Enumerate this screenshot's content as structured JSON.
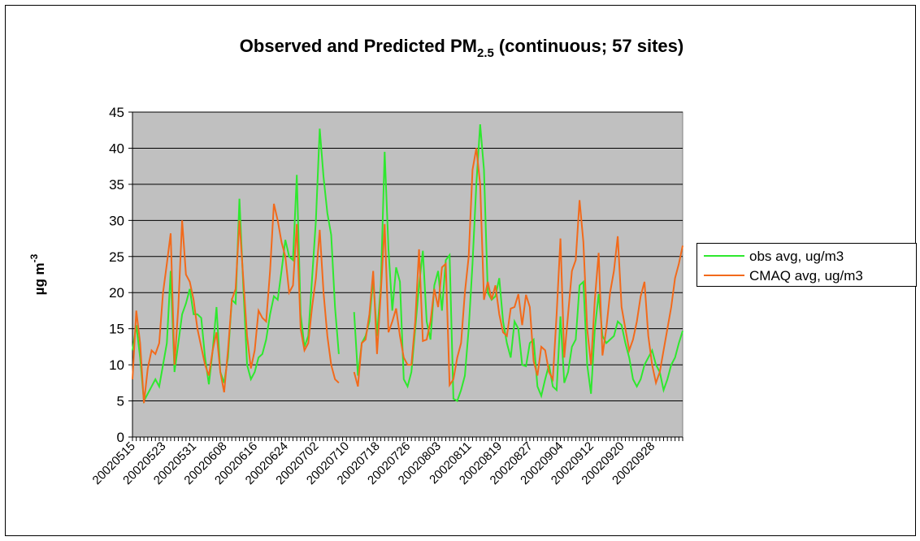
{
  "chart_data": {
    "type": "line",
    "title": [
      "Observed and Predicted PM",
      "2.5",
      "(continuous; 57 sites)"
    ],
    "ylabel": [
      "µg m",
      "-3"
    ],
    "categories": [
      "20020515",
      null,
      null,
      null,
      null,
      null,
      null,
      null,
      "20020523",
      null,
      null,
      null,
      null,
      null,
      null,
      null,
      "20020531",
      null,
      null,
      null,
      null,
      null,
      null,
      null,
      "20020608",
      null,
      null,
      null,
      null,
      null,
      null,
      null,
      "20020616",
      null,
      null,
      null,
      null,
      null,
      null,
      null,
      "20020624",
      null,
      null,
      null,
      null,
      null,
      null,
      null,
      "20020702",
      null,
      null,
      null,
      null,
      null,
      null,
      null,
      "20020710",
      null,
      null,
      null,
      null,
      null,
      null,
      null,
      "20020718",
      null,
      null,
      null,
      null,
      null,
      null,
      null,
      "20020726",
      null,
      null,
      null,
      null,
      null,
      null,
      null,
      "20020803",
      null,
      null,
      null,
      null,
      null,
      null,
      null,
      "20020811",
      null,
      null,
      null,
      null,
      null,
      null,
      null,
      "20020819",
      null,
      null,
      null,
      null,
      null,
      null,
      null,
      "20020827",
      null,
      null,
      null,
      null,
      null,
      null,
      null,
      "20020904",
      null,
      null,
      null,
      null,
      null,
      null,
      null,
      "20020912",
      null,
      null,
      null,
      null,
      null,
      null,
      null,
      "20020920",
      null,
      null,
      null,
      null,
      null,
      null,
      null,
      "20020928",
      null,
      null,
      null,
      null,
      null,
      null,
      null,
      null
    ],
    "series": [
      {
        "name": "obs avg, ug/m3",
        "color": "#2ee82e",
        "values": [
          12,
          15.5,
          11,
          5,
          6,
          7,
          8,
          7,
          10,
          13,
          23,
          9,
          13,
          17,
          18.5,
          20.5,
          17,
          17,
          16.5,
          11,
          7.3,
          12,
          18,
          9,
          7.5,
          11,
          19,
          18.5,
          33,
          21,
          10,
          8,
          9,
          11,
          11.5,
          13.5,
          17,
          19.5,
          19,
          23,
          27.3,
          25,
          24.5,
          36.3,
          17,
          12.5,
          14,
          22,
          30,
          42.7,
          36,
          31,
          28,
          18,
          11.5,
          null,
          null,
          null,
          17.3,
          8.5,
          13,
          14,
          16,
          22,
          14,
          21,
          39.5,
          26,
          17.5,
          23.5,
          21.5,
          8,
          7,
          9,
          15,
          21,
          25.8,
          16,
          13.5,
          21,
          23,
          17.5,
          24.5,
          25.2,
          5.3,
          5,
          6.5,
          8.5,
          15,
          24,
          35,
          43.3,
          37,
          20,
          19,
          19.5,
          22,
          16,
          13,
          11,
          16,
          15,
          10,
          9.8,
          13,
          13.5,
          7,
          5.7,
          8,
          10,
          7,
          6.5,
          16.7,
          7.5,
          9,
          12.5,
          13.5,
          21,
          21.5,
          10,
          6,
          15,
          19.8,
          14,
          13,
          13.5,
          14,
          16,
          15.5,
          13,
          11,
          8,
          7,
          8,
          10,
          11,
          12,
          10,
          9,
          6.5,
          8,
          10,
          11,
          13,
          14.7
        ]
      },
      {
        "name": "CMAQ avg, ug/m3",
        "color": "#f26a1b",
        "values": [
          8,
          17.5,
          13,
          4.7,
          9.5,
          12,
          11.5,
          13,
          20,
          24,
          28.2,
          10,
          18,
          30,
          22.5,
          21.5,
          19,
          15,
          12.5,
          10,
          8.5,
          12,
          14.5,
          9,
          6.2,
          12,
          19,
          20.5,
          30,
          22,
          14,
          9.5,
          12,
          17.5,
          16.5,
          16,
          23,
          32.3,
          30,
          27,
          25,
          20,
          21,
          29.5,
          15,
          12,
          13,
          18,
          22,
          28.7,
          20,
          14,
          10,
          8,
          7.5,
          null,
          null,
          null,
          9,
          7,
          13,
          13.5,
          17,
          23,
          11.5,
          20,
          29.5,
          14.5,
          16,
          17.8,
          14,
          11,
          10,
          10,
          16,
          26,
          13.3,
          13.5,
          16,
          20.5,
          18,
          23.5,
          24,
          7.2,
          8,
          11,
          13,
          20,
          25,
          37,
          40,
          35,
          19,
          21.5,
          19,
          21,
          17,
          14.5,
          14,
          17.8,
          18,
          19.8,
          15.5,
          19.7,
          18,
          10.5,
          8.5,
          12.5,
          12,
          9,
          8,
          17,
          27.5,
          11,
          17,
          23,
          24.5,
          32.8,
          27,
          15,
          10,
          19,
          25.5,
          11.3,
          15,
          20,
          23,
          27.8,
          18,
          15,
          12,
          13.5,
          16,
          19.5,
          21.5,
          14,
          10,
          7.5,
          9,
          12,
          15,
          18,
          22,
          24,
          26.5
        ]
      }
    ],
    "ylim": [
      0,
      45
    ],
    "yticks": [
      0,
      5,
      10,
      15,
      20,
      25,
      30,
      35,
      40,
      45
    ],
    "grid": true,
    "legend": "right"
  }
}
